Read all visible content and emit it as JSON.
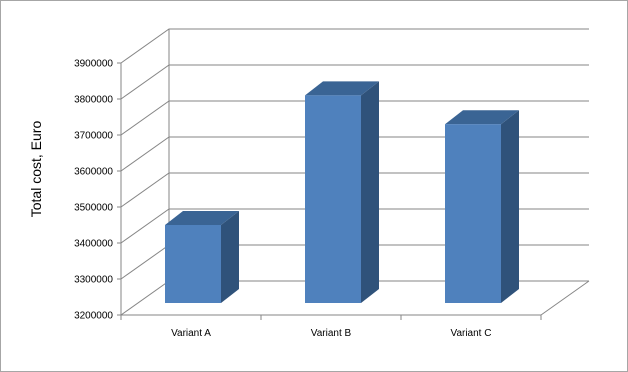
{
  "chart_data": {
    "type": "bar",
    "categories": [
      "Variant A",
      "Variant B",
      "Variant C"
    ],
    "values": [
      3450000,
      3810000,
      3730000
    ],
    "title": "",
    "xlabel": "",
    "ylabel": "Total cost, Euro",
    "ylim": [
      3200000,
      3900000
    ],
    "yticks": [
      3200000,
      3300000,
      3400000,
      3500000,
      3600000,
      3700000,
      3800000,
      3900000
    ],
    "ytick_labels": [
      "3200000",
      "3300000",
      "3400000",
      "3500000",
      "3600000",
      "3700000",
      "3800000",
      "3900000"
    ],
    "grid": true,
    "legend": "none",
    "style": "3d-column",
    "colors": {
      "bar_front": "#4f81bd",
      "bar_side": "#2f527a",
      "bar_top": "#3a6494",
      "gridline": "#868686",
      "frame_border": "#a6a6a6"
    }
  }
}
